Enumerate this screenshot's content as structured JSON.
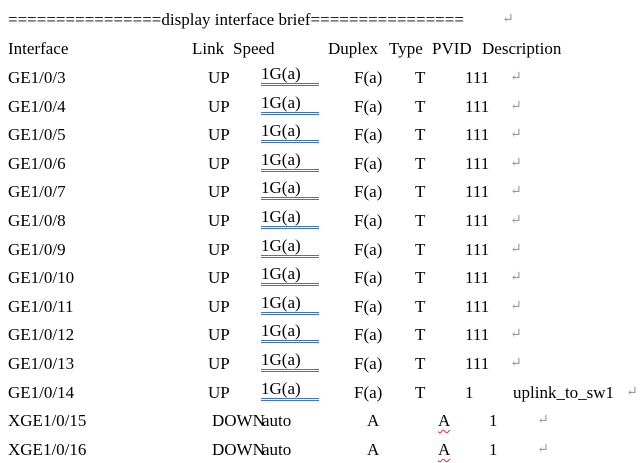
{
  "title_line": "================display interface brief================",
  "para_mark": "↵",
  "columns": {
    "interface": "Interface",
    "link": "Link",
    "speed": "Speed",
    "duplex": "Duplex",
    "type": "Type",
    "pvid": "PVID",
    "description": "Description"
  },
  "rows": [
    {
      "interface": "GE1/0/3",
      "link": "UP",
      "speed": "1G(a)",
      "duplex": "F(a)",
      "type": "T",
      "pvid": "111",
      "description": ""
    },
    {
      "interface": "GE1/0/4",
      "link": "UP",
      "speed": "1G(a)",
      "duplex": "F(a)",
      "type": "T",
      "pvid": "111",
      "description": ""
    },
    {
      "interface": "GE1/0/5",
      "link": "UP",
      "speed": "1G(a)",
      "duplex": "F(a)",
      "type": "T",
      "pvid": "111",
      "description": ""
    },
    {
      "interface": "GE1/0/6",
      "link": "UP",
      "speed": "1G(a)",
      "duplex": "F(a)",
      "type": "T",
      "pvid": "111",
      "description": ""
    },
    {
      "interface": "GE1/0/7",
      "link": "UP",
      "speed": "1G(a)",
      "duplex": "F(a)",
      "type": "T",
      "pvid": "111",
      "description": ""
    },
    {
      "interface": "GE1/0/8",
      "link": "UP",
      "speed": "1G(a)",
      "duplex": "F(a)",
      "type": "T",
      "pvid": "111",
      "description": ""
    },
    {
      "interface": "GE1/0/9",
      "link": "UP",
      "speed": "1G(a)",
      "duplex": "F(a)",
      "type": "T",
      "pvid": "111",
      "description": ""
    },
    {
      "interface": "GE1/0/10",
      "link": "UP",
      "speed": "1G(a)",
      "duplex": "F(a)",
      "type": "T",
      "pvid": "111",
      "description": ""
    },
    {
      "interface": "GE1/0/11",
      "link": "UP",
      "speed": "1G(a)",
      "duplex": "F(a)",
      "type": "T",
      "pvid": "111",
      "description": ""
    },
    {
      "interface": "GE1/0/12",
      "link": "UP",
      "speed": "1G(a)",
      "duplex": "F(a)",
      "type": "T",
      "pvid": "111",
      "description": ""
    },
    {
      "interface": "GE1/0/13",
      "link": "UP",
      "speed": "1G(a)",
      "duplex": "F(a)",
      "type": "T",
      "pvid": "111",
      "description": ""
    },
    {
      "interface": "GE1/0/14",
      "link": "UP",
      "speed": "1G(a)",
      "duplex": "F(a)",
      "type": "T",
      "pvid": "1",
      "description": "uplink_to_sw1"
    },
    {
      "interface": "XGE1/0/15",
      "link": "DOWN",
      "speed": "auto",
      "duplex": "A",
      "type": "A",
      "pvid": "1",
      "description": ""
    },
    {
      "interface": "XGE1/0/16",
      "link": "DOWN",
      "speed": "auto",
      "duplex": "A",
      "type": "A",
      "pvid": "1",
      "description": ""
    }
  ]
}
